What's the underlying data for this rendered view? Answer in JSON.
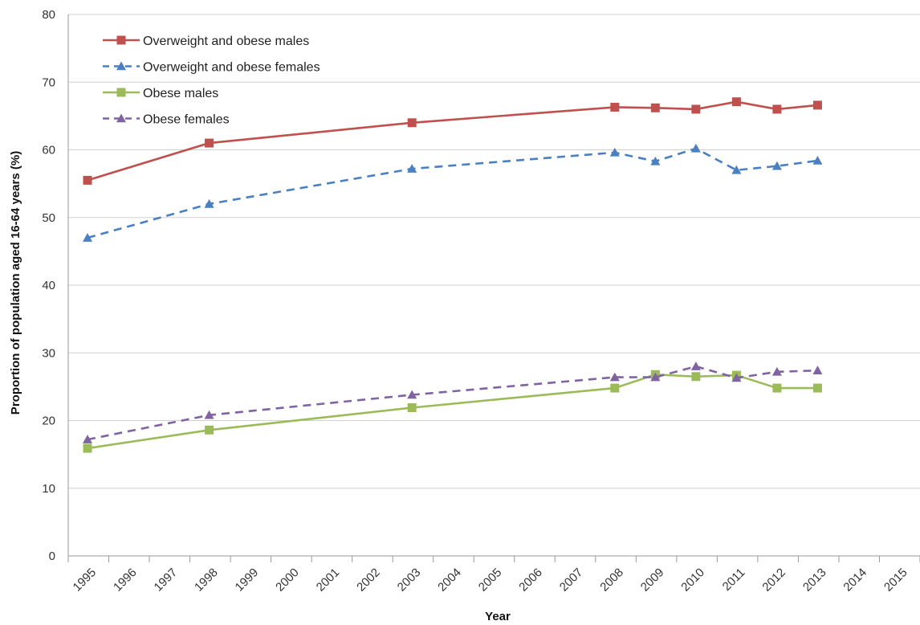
{
  "chart_data": {
    "type": "line",
    "title": "",
    "xlabel": "Year",
    "ylabel": "Proportion of population aged 16-64 years  (%)",
    "ylim": [
      0,
      80
    ],
    "yticks": [
      0,
      10,
      20,
      30,
      40,
      50,
      60,
      70,
      80
    ],
    "categories": [
      "1995",
      "1996",
      "1997",
      "1998",
      "1999",
      "2000",
      "2001",
      "2002",
      "2003",
      "2004",
      "2005",
      "2006",
      "2007",
      "2008",
      "2009",
      "2010",
      "2011",
      "2012",
      "2013",
      "2014",
      "2015"
    ],
    "grid": "horizontal",
    "legend_position": "top-left",
    "series": [
      {
        "name": "Overweight and obese males",
        "color": "#c0504d",
        "dash": "solid",
        "marker": "square",
        "points": [
          {
            "x": "1995",
            "y": 55.5
          },
          {
            "x": "1998",
            "y": 61.0
          },
          {
            "x": "2003",
            "y": 64.0
          },
          {
            "x": "2008",
            "y": 66.3
          },
          {
            "x": "2009",
            "y": 66.2
          },
          {
            "x": "2010",
            "y": 66.0
          },
          {
            "x": "2011",
            "y": 67.1
          },
          {
            "x": "2012",
            "y": 66.0
          },
          {
            "x": "2013",
            "y": 66.6
          }
        ]
      },
      {
        "name": "Overweight and obese females",
        "color": "#4a7fc1",
        "dash": "dashed",
        "marker": "triangle",
        "points": [
          {
            "x": "1995",
            "y": 47.0
          },
          {
            "x": "1998",
            "y": 52.0
          },
          {
            "x": "2003",
            "y": 57.2
          },
          {
            "x": "2008",
            "y": 59.6
          },
          {
            "x": "2009",
            "y": 58.3
          },
          {
            "x": "2010",
            "y": 60.2
          },
          {
            "x": "2011",
            "y": 57.0
          },
          {
            "x": "2012",
            "y": 57.6
          },
          {
            "x": "2013",
            "y": 58.4
          }
        ]
      },
      {
        "name": "Obese males",
        "color": "#9bbb59",
        "dash": "solid",
        "marker": "square",
        "points": [
          {
            "x": "1995",
            "y": 15.9
          },
          {
            "x": "1998",
            "y": 18.6
          },
          {
            "x": "2003",
            "y": 21.9
          },
          {
            "x": "2008",
            "y": 24.8
          },
          {
            "x": "2009",
            "y": 26.8
          },
          {
            "x": "2010",
            "y": 26.5
          },
          {
            "x": "2011",
            "y": 26.7
          },
          {
            "x": "2012",
            "y": 24.8
          },
          {
            "x": "2013",
            "y": 24.8
          }
        ]
      },
      {
        "name": "Obese females",
        "color": "#8064a2",
        "dash": "dashed",
        "marker": "triangle",
        "points": [
          {
            "x": "1995",
            "y": 17.2
          },
          {
            "x": "1998",
            "y": 20.8
          },
          {
            "x": "2003",
            "y": 23.8
          },
          {
            "x": "2008",
            "y": 26.4
          },
          {
            "x": "2009",
            "y": 26.4
          },
          {
            "x": "2010",
            "y": 28.0
          },
          {
            "x": "2011",
            "y": 26.3
          },
          {
            "x": "2012",
            "y": 27.2
          },
          {
            "x": "2013",
            "y": 27.4
          }
        ]
      }
    ]
  }
}
